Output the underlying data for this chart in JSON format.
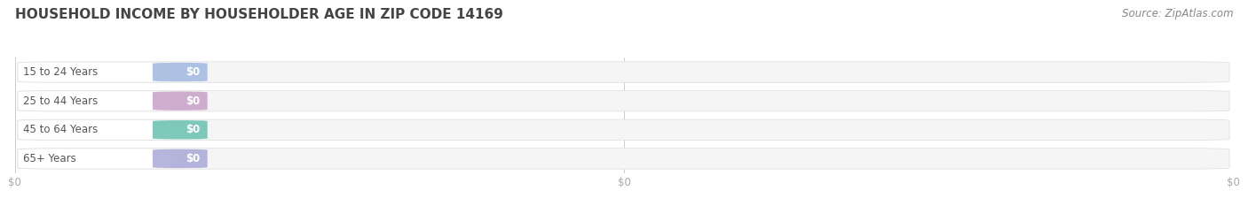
{
  "title": "HOUSEHOLD INCOME BY HOUSEHOLDER AGE IN ZIP CODE 14169",
  "source": "Source: ZipAtlas.com",
  "categories": [
    "15 to 24 Years",
    "25 to 44 Years",
    "45 to 64 Years",
    "65+ Years"
  ],
  "values": [
    0,
    0,
    0,
    0
  ],
  "pill_colors": [
    "#a0b8e0",
    "#c8a0c8",
    "#68c0b0",
    "#a8a8d8"
  ],
  "background_color": "#ffffff",
  "bar_bg_color": "#ebebeb",
  "bar_bg_edge_color": "#dddddd",
  "bar_bg_light": "#f5f5f5",
  "title_fontsize": 11,
  "label_fontsize": 8.5,
  "source_fontsize": 8.5,
  "tick_color": "#aaaaaa",
  "label_text_color": "#555555",
  "title_color": "#444444"
}
